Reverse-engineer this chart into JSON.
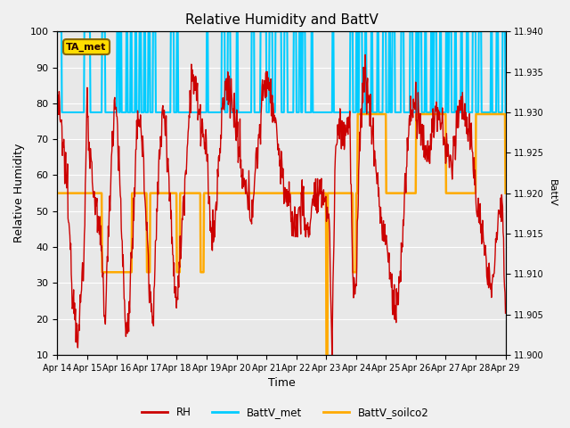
{
  "title": "Relative Humidity and BattV",
  "xlabel": "Time",
  "ylabel_left": "Relative Humidity",
  "ylabel_right": "BattV",
  "ylim_left": [
    10,
    100
  ],
  "ylim_right": [
    11.9,
    11.94
  ],
  "yticks_left": [
    10,
    20,
    30,
    40,
    50,
    60,
    70,
    80,
    90,
    100
  ],
  "yticks_right": [
    11.9,
    11.905,
    11.91,
    11.915,
    11.92,
    11.925,
    11.93,
    11.935,
    11.94
  ],
  "xtick_labels": [
    "Apr 14",
    "Apr 15",
    "Apr 16",
    "Apr 17",
    "Apr 18",
    "Apr 19",
    "Apr 20",
    "Apr 21",
    "Apr 22",
    "Apr 23",
    "Apr 24",
    "Apr 25",
    "Apr 26",
    "Apr 27",
    "Apr 28",
    "Apr 29"
  ],
  "annotation_text": "TA_met",
  "bg_color": "#f0f0f0",
  "plot_bg_color": "#e8e8e8",
  "rh_color": "#cc0000",
  "battv_met_color": "#00ccff",
  "battv_soilco2_color": "#ffaa00",
  "legend_labels": [
    "RH",
    "BattV_met",
    "BattV_soilco2"
  ],
  "rh_val_high": 77.5,
  "battv_met_high": 100,
  "battv_met_low": 77.5,
  "battv_soilco2_high": 55,
  "battv_soilco2_low": 33
}
